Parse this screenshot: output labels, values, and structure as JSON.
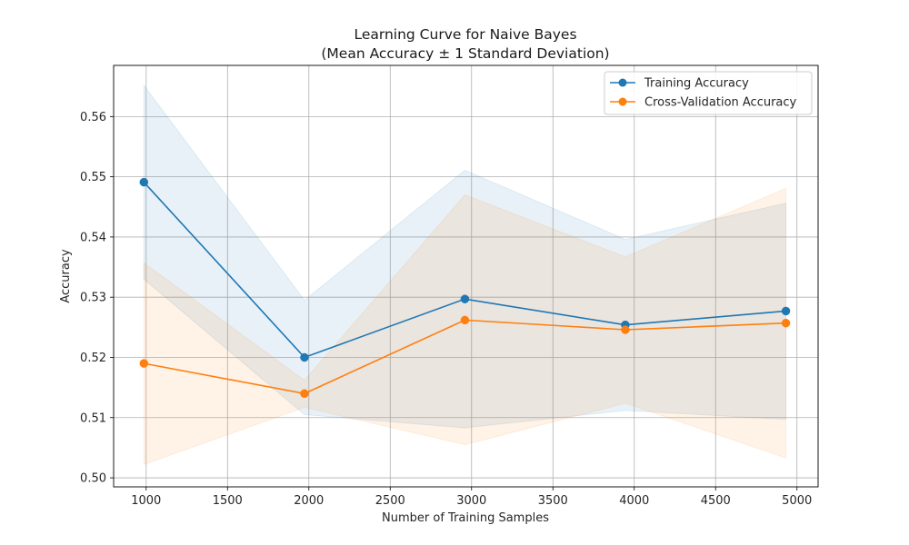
{
  "chart_data": {
    "type": "line",
    "title_line1": "Learning Curve for Naive Bayes",
    "title_line2": "(Mean Accuracy ± 1 Standard Deviation)",
    "xlabel": "Number of Training Samples",
    "ylabel": "Accuracy",
    "xlim": [
      800,
      5130
    ],
    "ylim": [
      0.4985,
      0.5685
    ],
    "xticks": [
      1000,
      1500,
      2000,
      2500,
      3000,
      3500,
      4000,
      4500,
      5000
    ],
    "yticks": [
      0.5,
      0.51,
      0.52,
      0.53,
      0.54,
      0.55,
      0.56
    ],
    "ytick_labels": [
      "0.50",
      "0.51",
      "0.52",
      "0.53",
      "0.54",
      "0.55",
      "0.56"
    ],
    "grid": true,
    "legend_position": "top-right",
    "x": [
      986,
      1973,
      2959,
      3945,
      4932
    ],
    "series": [
      {
        "name": "Training Accuracy",
        "color": "#1f77b4",
        "marker": "circle",
        "values": [
          0.5491,
          0.52,
          0.5297,
          0.5254,
          0.5277
        ],
        "lower": [
          0.533,
          0.5105,
          0.5083,
          0.5112,
          0.5097
        ],
        "upper": [
          0.5652,
          0.5295,
          0.5511,
          0.5396,
          0.5456
        ]
      },
      {
        "name": "Cross-Validation Accuracy",
        "color": "#ff7f0e",
        "marker": "circle",
        "values": [
          0.519,
          0.514,
          0.5262,
          0.5246,
          0.5257
        ],
        "lower": [
          0.5022,
          0.5117,
          0.5055,
          0.5124,
          0.5033
        ],
        "upper": [
          0.5357,
          0.5162,
          0.547,
          0.5367,
          0.5481
        ]
      }
    ]
  }
}
